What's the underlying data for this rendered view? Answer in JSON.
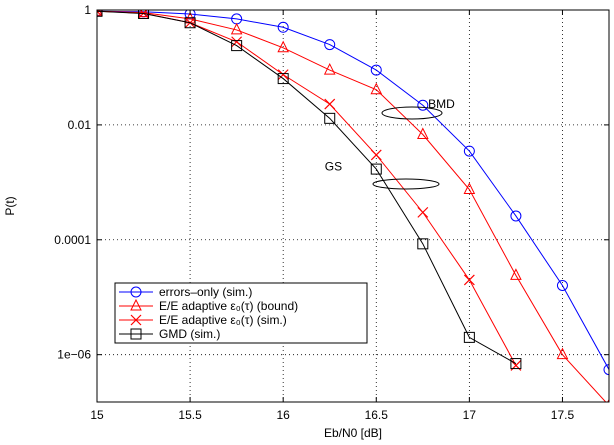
{
  "chart_data": {
    "type": "line",
    "xlabel": "Eb/N0 [dB]",
    "ylabel": "P(t)",
    "xlim": [
      15,
      17.75
    ],
    "ylim": [
      1.5e-07,
      1
    ],
    "yscale": "log",
    "grid": true,
    "x_ticks": [
      15,
      15.5,
      16,
      16.5,
      17,
      17.5
    ],
    "x_tick_labels": [
      "15",
      "15.5",
      "16",
      "16.5",
      "17",
      "17.5"
    ],
    "y_ticks": [
      1,
      0.01,
      0.0001,
      1e-06
    ],
    "y_tick_labels": [
      "1",
      "0.01",
      "0.0001",
      "1e−06"
    ],
    "legend_position": "bottom-left",
    "series": [
      {
        "name": "errors–only (sim.)",
        "color": "#0000ff",
        "marker": "circle",
        "x": [
          15,
          15.25,
          15.5,
          15.75,
          16,
          16.25,
          16.5,
          16.75,
          17,
          17.25,
          17.5,
          17.75
        ],
        "y": [
          0.95,
          0.93,
          0.85,
          0.7,
          0.5,
          0.25,
          0.09,
          0.022,
          0.0035,
          0.00026,
          1.6e-05,
          5.5e-07
        ]
      },
      {
        "name": "E/E adaptive ε₀(τ) (bound)",
        "color": "#ff0000",
        "marker": "triangle",
        "x": [
          15,
          15.25,
          15.5,
          15.75,
          16,
          16.25,
          16.5,
          16.75,
          17,
          17.25,
          17.5,
          17.75
        ],
        "y": [
          0.95,
          0.9,
          0.7,
          0.45,
          0.22,
          0.09,
          0.041,
          0.0068,
          0.00075,
          2.4e-05,
          1e-06,
          1.3e-07
        ]
      },
      {
        "name": "E/E adaptive ε₀(τ) (sim.)",
        "color": "#ff0000",
        "marker": "x",
        "x": [
          15,
          15.25,
          15.5,
          15.75,
          16,
          16.25,
          16.5,
          16.75,
          17,
          17.25
        ],
        "y": [
          0.95,
          0.88,
          0.6,
          0.28,
          0.075,
          0.023,
          0.003,
          0.0003,
          2e-05,
          6.5e-07
        ]
      },
      {
        "name": "GMD (sim.)",
        "color": "#000000",
        "marker": "square",
        "x": [
          15,
          15.25,
          15.5,
          15.75,
          16,
          16.25,
          16.5,
          16.75,
          17,
          17.25
        ],
        "y": [
          0.95,
          0.87,
          0.6,
          0.24,
          0.064,
          0.013,
          0.0017,
          8.5e-05,
          2e-06,
          7e-07
        ]
      }
    ],
    "annotations": [
      {
        "text": "BMD",
        "x": 16.85,
        "y": 0.023
      },
      {
        "text": "GS",
        "x": 16.27,
        "y": 0.0019
      }
    ]
  }
}
